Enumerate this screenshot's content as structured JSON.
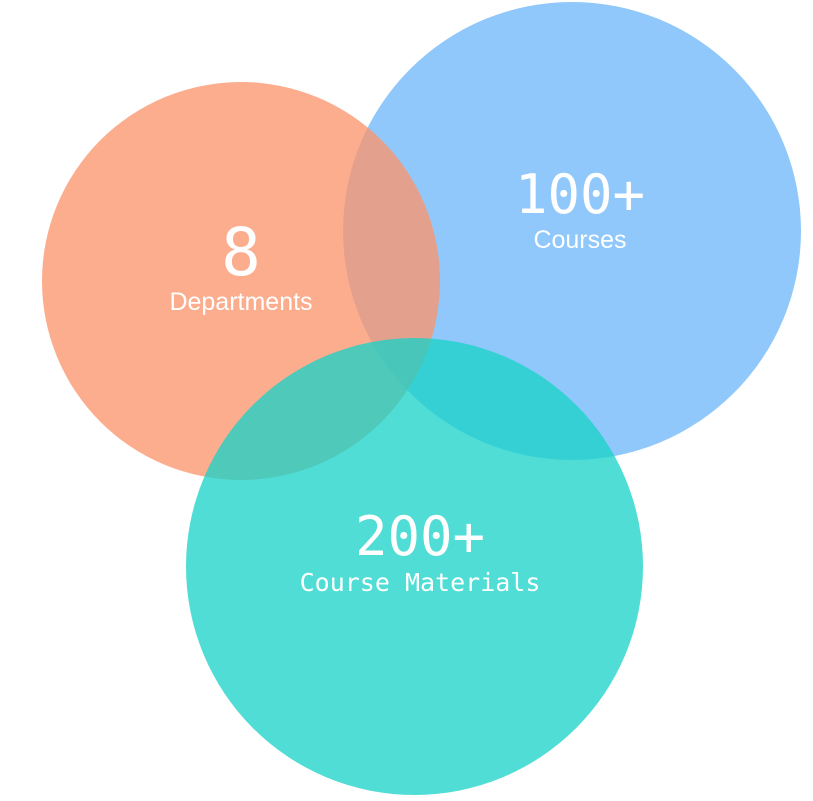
{
  "departments": {
    "value": "8",
    "label": "Departments",
    "color": "#FA966E"
  },
  "courses": {
    "value": "100+",
    "label": "Courses",
    "color": "#78BCFA"
  },
  "materials": {
    "value": "200+",
    "label": "Course Materials",
    "color": "#18D2C8"
  }
}
